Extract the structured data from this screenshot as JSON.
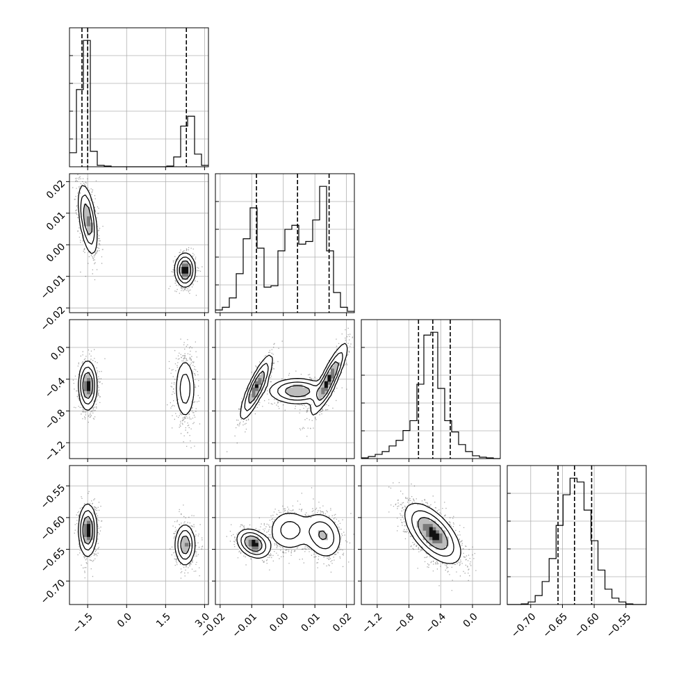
{
  "chart_data": {
    "type": "corner",
    "n_params": 4,
    "params": [
      {
        "ticks": [
          -1.5,
          0.0,
          1.5,
          3.0
        ],
        "tick_labels": [
          "−1.5",
          "0.0",
          "1.5",
          "3.0"
        ],
        "range": [
          -2.2,
          3.15
        ],
        "quantiles": [
          -1.72,
          -1.5,
          2.3
        ],
        "hist": {
          "edges": [
            -2.2,
            -1.932,
            -1.665,
            -1.397,
            -1.13,
            -0.863,
            -0.595,
            -0.328,
            -0.06,
            0.207,
            0.475,
            0.742,
            1.01,
            1.278,
            1.545,
            1.812,
            2.08,
            2.348,
            2.615,
            2.883,
            3.15
          ],
          "counts": [
            0.1,
            0.55,
            0.9,
            0.11,
            0.01,
            0.005,
            0,
            0,
            0,
            0,
            0,
            0,
            0,
            0,
            0.005,
            0.07,
            0.29,
            0.36,
            0.09,
            0.01
          ]
        }
      },
      {
        "ticks": [
          -0.02,
          -0.01,
          0.0,
          0.01,
          0.02
        ],
        "tick_labels": [
          "−0.02",
          "−0.01",
          "0.00",
          "0.01",
          "0.02"
        ],
        "range": [
          -0.0215,
          0.0225
        ],
        "quantiles": [
          -0.0085,
          0.0045,
          0.0145
        ],
        "hist": {
          "edges": [
            -0.0215,
            -0.0193,
            -0.0171,
            -0.0149,
            -0.0127,
            -0.0105,
            -0.0083,
            -0.0061,
            -0.0039,
            -0.0017,
            0.0005,
            0.0027,
            0.0049,
            0.0071,
            0.0093,
            0.0115,
            0.0137,
            0.0159,
            0.0181,
            0.0203,
            0.0225
          ],
          "counts": [
            0.02,
            0.04,
            0.11,
            0.29,
            0.55,
            0.78,
            0.48,
            0.19,
            0.2,
            0.46,
            0.62,
            0.65,
            0.51,
            0.53,
            0.69,
            0.94,
            0.46,
            0.15,
            0.04,
            0.01
          ]
        }
      },
      {
        "ticks": [
          -1.2,
          -0.8,
          -0.4,
          0.0
        ],
        "tick_labels": [
          "−1.2",
          "−0.8",
          "−0.4",
          "0.0"
        ],
        "range": [
          -1.4,
          0.35
        ],
        "quantiles": [
          -0.68,
          -0.5,
          -0.28
        ],
        "hist": {
          "edges": [
            -1.4,
            -1.3125,
            -1.225,
            -1.1375,
            -1.05,
            -0.9625,
            -0.875,
            -0.7875,
            -0.7,
            -0.6125,
            -0.525,
            -0.4375,
            -0.35,
            -0.2625,
            -0.175,
            -0.0875,
            0.0,
            0.0875,
            0.175,
            0.2625,
            0.35
          ],
          "counts": [
            0.005,
            0.015,
            0.03,
            0.05,
            0.09,
            0.13,
            0.2,
            0.27,
            0.53,
            0.88,
            0.9,
            0.5,
            0.27,
            0.19,
            0.1,
            0.05,
            0.02,
            0.01,
            0.005,
            0
          ]
        }
      },
      {
        "ticks": [
          -0.7,
          -0.65,
          -0.6,
          -0.55
        ],
        "tick_labels": [
          "−0.70",
          "−0.65",
          "−0.60",
          "−0.55"
        ],
        "range": [
          -0.737,
          -0.518
        ],
        "quantiles": [
          -0.657,
          -0.631,
          -0.604
        ],
        "hist": {
          "edges": [
            -0.737,
            -0.726,
            -0.715,
            -0.704,
            -0.693,
            -0.682,
            -0.671,
            -0.66,
            -0.649,
            -0.638,
            -0.627,
            -0.616,
            -0.605,
            -0.594,
            -0.583,
            -0.572,
            -0.561,
            -0.55,
            -0.539,
            -0.528,
            -0.518
          ],
          "counts": [
            0.0,
            0.0,
            0.005,
            0.02,
            0.07,
            0.18,
            0.36,
            0.62,
            0.86,
            0.99,
            0.96,
            0.74,
            0.5,
            0.27,
            0.12,
            0.05,
            0.02,
            0.005,
            0.0,
            0.0
          ]
        }
      }
    ],
    "pairs": [
      {
        "row": 1,
        "col": 0,
        "modes": [
          {
            "x": -1.5,
            "y": 0.008,
            "sx": 0.18,
            "sy": 0.0055,
            "w": 0.58,
            "rho": -0.5
          },
          {
            "x": 2.25,
            "y": -0.008,
            "sx": 0.19,
            "sy": 0.0026,
            "w": 0.42,
            "rho": 0.0
          }
        ]
      },
      {
        "row": 2,
        "col": 0,
        "modes": [
          {
            "x": -1.5,
            "y": -0.48,
            "sx": 0.17,
            "sy": 0.15,
            "w": 0.58,
            "rho": 0.0
          },
          {
            "x": 2.25,
            "y": -0.52,
            "sx": 0.2,
            "sy": 0.2,
            "w": 0.42,
            "rho": 0.0
          }
        ]
      },
      {
        "row": 2,
        "col": 1,
        "modes": [
          {
            "x": -0.0085,
            "y": -0.5,
            "sx": 0.0025,
            "sy": 0.2,
            "w": 0.3,
            "rho": 0.85
          },
          {
            "x": 0.0045,
            "y": -0.55,
            "sx": 0.0045,
            "sy": 0.08,
            "w": 0.35,
            "rho": 0.0
          },
          {
            "x": 0.0145,
            "y": -0.4,
            "sx": 0.0028,
            "sy": 0.22,
            "w": 0.35,
            "rho": 0.88
          }
        ]
      },
      {
        "row": 3,
        "col": 0,
        "modes": [
          {
            "x": -1.5,
            "y": -0.62,
            "sx": 0.17,
            "sy": 0.02,
            "w": 0.58,
            "rho": 0.0
          },
          {
            "x": 2.25,
            "y": -0.643,
            "sx": 0.19,
            "sy": 0.016,
            "w": 0.42,
            "rho": 0.0
          }
        ]
      },
      {
        "row": 3,
        "col": 1,
        "modes": [
          {
            "x": -0.0095,
            "y": -0.641,
            "sx": 0.0025,
            "sy": 0.011,
            "w": 0.32,
            "rho": -0.3
          },
          {
            "x": 0.002,
            "y": -0.62,
            "sx": 0.0035,
            "sy": 0.017,
            "w": 0.3,
            "rho": 0.0
          },
          {
            "x": 0.0125,
            "y": -0.628,
            "sx": 0.003,
            "sy": 0.018,
            "w": 0.38,
            "rho": -0.2
          }
        ]
      },
      {
        "row": 3,
        "col": 2,
        "modes": [
          {
            "x": -0.5,
            "y": -0.625,
            "sx": 0.17,
            "sy": 0.023,
            "w": 1.0,
            "rho": -0.62
          }
        ]
      }
    ]
  }
}
